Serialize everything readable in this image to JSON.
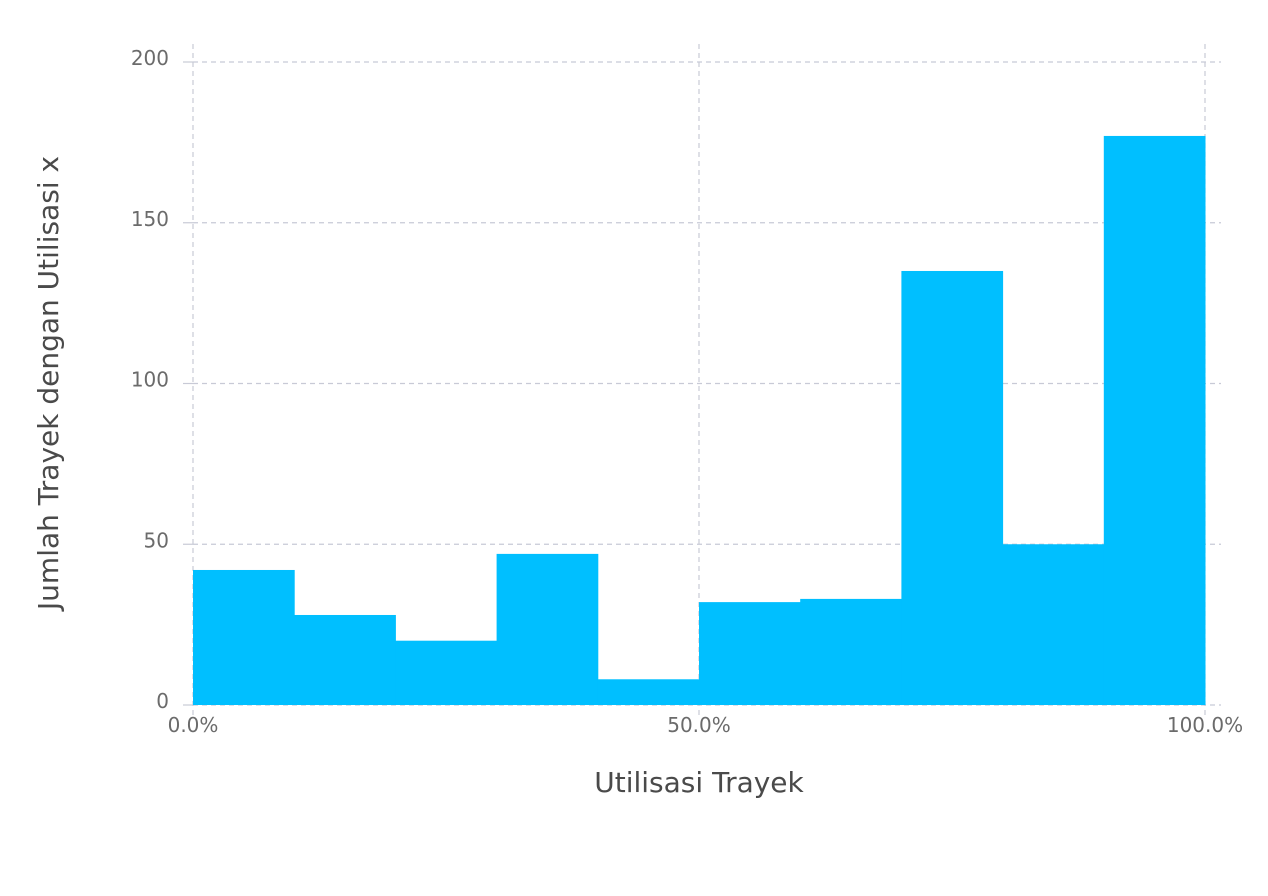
{
  "chart_data": {
    "type": "bar",
    "subtype": "histogram",
    "title": "",
    "xlabel": "Utilisasi Trayek",
    "ylabel": "Jumlah Trayek dengan Utilisasi x",
    "bin_edges": [
      0,
      0.1,
      0.2,
      0.3,
      0.4,
      0.5,
      0.6,
      0.7,
      0.8,
      0.9,
      1.0
    ],
    "values": [
      42,
      28,
      20,
      47,
      8,
      32,
      33,
      135,
      50,
      177
    ],
    "xlim": [
      0,
      1.0
    ],
    "ylim": [
      0,
      200
    ],
    "x_ticks": [
      0,
      0.5,
      1.0
    ],
    "x_tick_labels": [
      "0.0%",
      "50.0%",
      "100.0%"
    ],
    "y_ticks": [
      0,
      50,
      100,
      150,
      200
    ],
    "y_tick_labels": [
      "0",
      "50",
      "100",
      "150",
      "200"
    ],
    "grid": true,
    "legend": "none",
    "bar_color": "#00bfff",
    "grid_color": "#c8cad6"
  }
}
